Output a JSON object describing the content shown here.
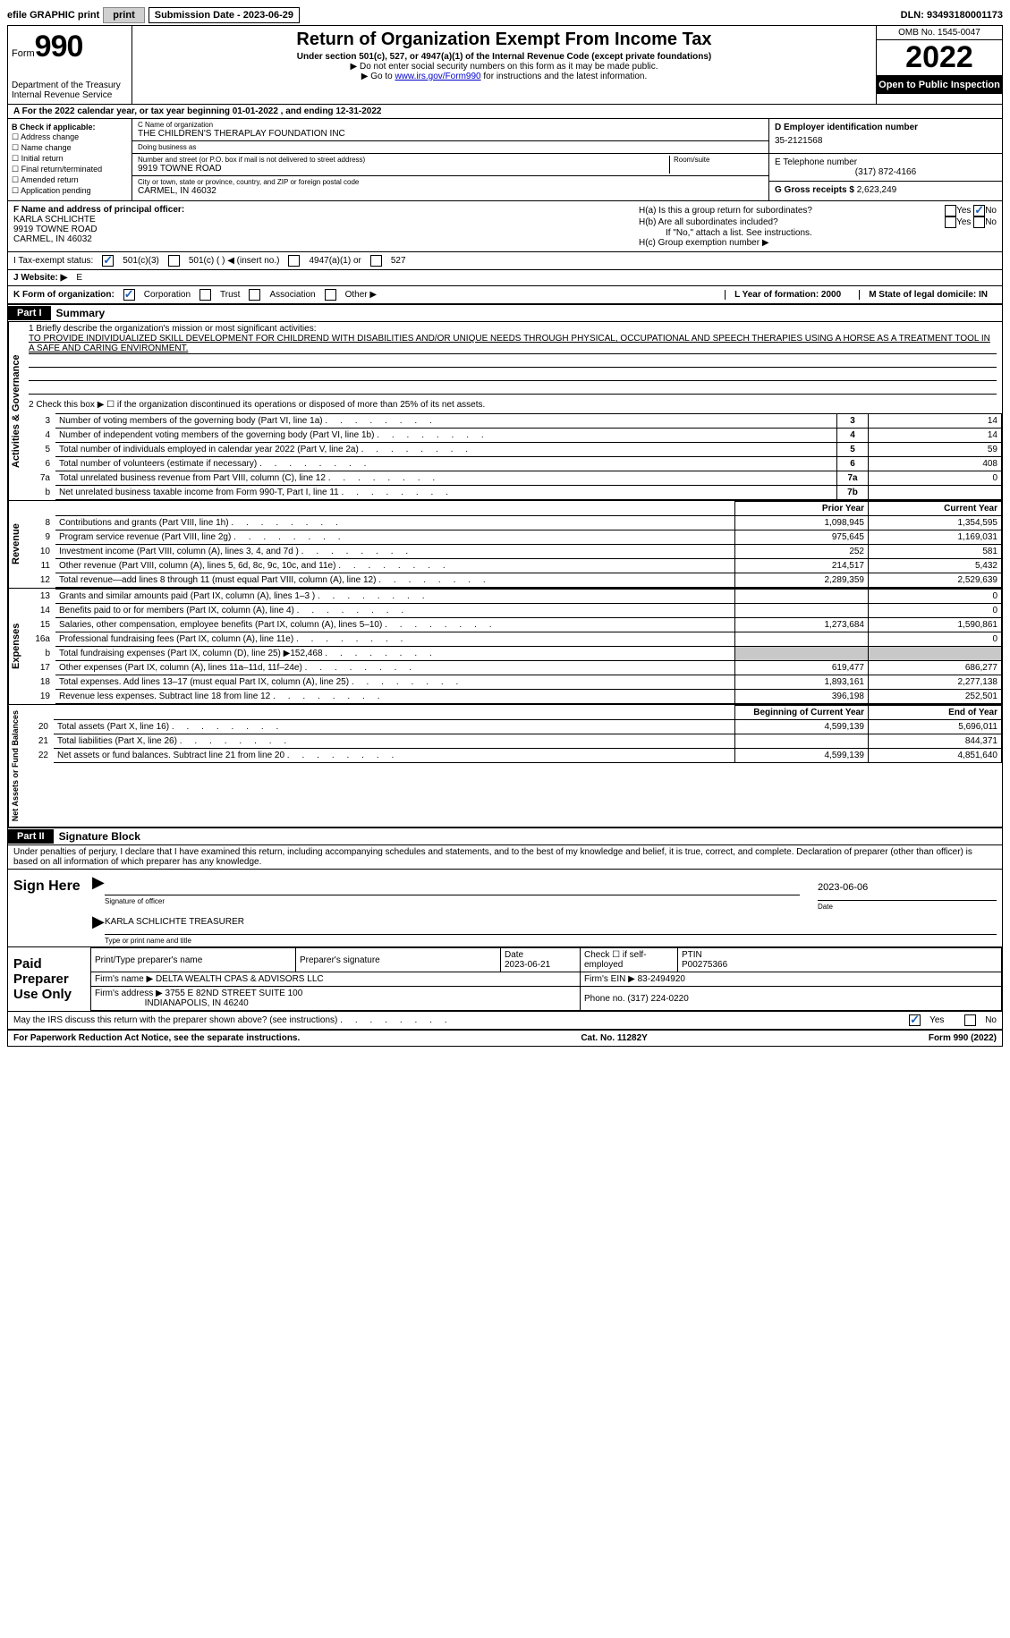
{
  "top": {
    "efile": "efile GRAPHIC print",
    "sub_date_label": "Submission Date - 2023-06-29",
    "dln": "DLN: 93493180001173"
  },
  "header": {
    "form_word": "Form",
    "form_no": "990",
    "title": "Return of Organization Exempt From Income Tax",
    "subtitle": "Under section 501(c), 527, or 4947(a)(1) of the Internal Revenue Code (except private foundations)",
    "line2": "▶ Do not enter social security numbers on this form as it may be made public.",
    "line3_pre": "▶ Go to ",
    "line3_link": "www.irs.gov/Form990",
    "line3_post": " for instructions and the latest information.",
    "dept": "Department of the Treasury Internal Revenue Service",
    "omb": "OMB No. 1545-0047",
    "year": "2022",
    "oti": "Open to Public Inspection"
  },
  "rowA": "A For the 2022 calendar year, or tax year beginning 01-01-2022    , and ending 12-31-2022",
  "colB": {
    "label": "B Check if applicable:",
    "opts": [
      "Address change",
      "Name change",
      "Initial return",
      "Final return/terminated",
      "Amended return",
      "Application pending"
    ]
  },
  "colC": {
    "name_label": "C Name of organization",
    "name": "THE CHILDREN'S THERAPLAY FOUNDATION INC",
    "dba_label": "Doing business as",
    "addr_label": "Number and street (or P.O. box if mail is not delivered to street address)",
    "room_label": "Room/suite",
    "addr": "9919 TOWNE ROAD",
    "city_label": "City or town, state or province, country, and ZIP or foreign postal code",
    "city": "CARMEL, IN  46032"
  },
  "colD": {
    "ein_label": "D Employer identification number",
    "ein": "35-2121568",
    "phone_label": "E Telephone number",
    "phone": "(317) 872-4166",
    "gross_label": "G Gross receipts $",
    "gross": "2,623,249"
  },
  "rowF": {
    "label": "F  Name and address of principal officer:",
    "name": "KARLA SCHLICHTE",
    "addr1": "9919 TOWNE ROAD",
    "addr2": "CARMEL, IN  46032"
  },
  "rowH": {
    "ha": "H(a)  Is this a group return for subordinates?",
    "hb": "H(b)  Are all subordinates included?",
    "hb_note": "If \"No,\" attach a list. See instructions.",
    "hc": "H(c)  Group exemption number ▶",
    "yes": "Yes",
    "no": "No"
  },
  "rowI": {
    "label": "I   Tax-exempt status:",
    "o1": "501(c)(3)",
    "o2": "501(c) (  ) ◀ (insert no.)",
    "o3": "4947(a)(1) or",
    "o4": "527"
  },
  "rowJ": {
    "label": "J   Website: ▶",
    "val": "E"
  },
  "rowK": {
    "label": "K Form of organization:",
    "o1": "Corporation",
    "o2": "Trust",
    "o3": "Association",
    "o4": "Other ▶",
    "L": "L Year of formation: 2000",
    "M": "M State of legal domicile: IN"
  },
  "part1": {
    "num": "Part I",
    "title": "Summary"
  },
  "mission": {
    "label": "1   Briefly describe the organization's mission or most significant activities:",
    "text": "TO PROVIDE INDIVIDUALIZED SKILL DEVELOPMENT FOR CHILDREND WITH DISABILITIES AND/OR UNIQUE NEEDS THROUGH PHYSICAL, OCCUPATIONAL AND SPEECH THERAPIES USING A HORSE AS A TREATMENT TOOL IN A SAFE AND CARING ENVIRONMENT."
  },
  "line2": "2   Check this box ▶ ☐  if the organization discontinued its operations or disposed of more than 25% of its net assets.",
  "gov_rows": [
    {
      "n": "3",
      "desc": "Number of voting members of the governing body (Part VI, line 1a)",
      "box": "3",
      "val": "14"
    },
    {
      "n": "4",
      "desc": "Number of independent voting members of the governing body (Part VI, line 1b)",
      "box": "4",
      "val": "14"
    },
    {
      "n": "5",
      "desc": "Total number of individuals employed in calendar year 2022 (Part V, line 2a)",
      "box": "5",
      "val": "59"
    },
    {
      "n": "6",
      "desc": "Total number of volunteers (estimate if necessary)",
      "box": "6",
      "val": "408"
    },
    {
      "n": "7a",
      "desc": "Total unrelated business revenue from Part VIII, column (C), line 12",
      "box": "7a",
      "val": "0"
    },
    {
      "n": "b",
      "desc": "Net unrelated business taxable income from Form 990-T, Part I, line 11",
      "box": "7b",
      "val": ""
    }
  ],
  "rev_hdr": {
    "prior": "Prior Year",
    "curr": "Current Year"
  },
  "rev_rows": [
    {
      "n": "8",
      "desc": "Contributions and grants (Part VIII, line 1h)",
      "p": "1,098,945",
      "c": "1,354,595"
    },
    {
      "n": "9",
      "desc": "Program service revenue (Part VIII, line 2g)",
      "p": "975,645",
      "c": "1,169,031"
    },
    {
      "n": "10",
      "desc": "Investment income (Part VIII, column (A), lines 3, 4, and 7d )",
      "p": "252",
      "c": "581"
    },
    {
      "n": "11",
      "desc": "Other revenue (Part VIII, column (A), lines 5, 6d, 8c, 9c, 10c, and 11e)",
      "p": "214,517",
      "c": "5,432"
    },
    {
      "n": "12",
      "desc": "Total revenue—add lines 8 through 11 (must equal Part VIII, column (A), line 12)",
      "p": "2,289,359",
      "c": "2,529,639"
    }
  ],
  "exp_rows": [
    {
      "n": "13",
      "desc": "Grants and similar amounts paid (Part IX, column (A), lines 1–3 )",
      "p": "",
      "c": "0"
    },
    {
      "n": "14",
      "desc": "Benefits paid to or for members (Part IX, column (A), line 4)",
      "p": "",
      "c": "0"
    },
    {
      "n": "15",
      "desc": "Salaries, other compensation, employee benefits (Part IX, column (A), lines 5–10)",
      "p": "1,273,684",
      "c": "1,590,861"
    },
    {
      "n": "16a",
      "desc": "Professional fundraising fees (Part IX, column (A), line 11e)",
      "p": "",
      "c": "0"
    },
    {
      "n": "b",
      "desc": "Total fundraising expenses (Part IX, column (D), line 25) ▶152,468",
      "p": "grey",
      "c": "grey"
    },
    {
      "n": "17",
      "desc": "Other expenses (Part IX, column (A), lines 11a–11d, 11f–24e)",
      "p": "619,477",
      "c": "686,277"
    },
    {
      "n": "18",
      "desc": "Total expenses. Add lines 13–17 (must equal Part IX, column (A), line 25)",
      "p": "1,893,161",
      "c": "2,277,138"
    },
    {
      "n": "19",
      "desc": "Revenue less expenses. Subtract line 18 from line 12",
      "p": "396,198",
      "c": "252,501"
    }
  ],
  "na_hdr": {
    "prior": "Beginning of Current Year",
    "curr": "End of Year"
  },
  "na_rows": [
    {
      "n": "20",
      "desc": "Total assets (Part X, line 16)",
      "p": "4,599,139",
      "c": "5,696,011"
    },
    {
      "n": "21",
      "desc": "Total liabilities (Part X, line 26)",
      "p": "",
      "c": "844,371"
    },
    {
      "n": "22",
      "desc": "Net assets or fund balances. Subtract line 21 from line 20",
      "p": "4,599,139",
      "c": "4,851,640"
    }
  ],
  "part2": {
    "num": "Part II",
    "title": "Signature Block"
  },
  "sig_decl": "Under penalties of perjury, I declare that I have examined this return, including accompanying schedules and statements, and to the best of my knowledge and belief, it is true, correct, and complete. Declaration of preparer (other than officer) is based on all information of which preparer has any knowledge.",
  "sign": {
    "label": "Sign Here",
    "sig_cap": "Signature of officer",
    "date": "2023-06-06",
    "date_cap": "Date",
    "name": "KARLA SCHLICHTE  TREASURER",
    "name_cap": "Type or print name and title"
  },
  "paid": {
    "label": "Paid Preparer Use Only",
    "h1": "Print/Type preparer's name",
    "h2": "Preparer's signature",
    "h3": "Date",
    "h3v": "2023-06-21",
    "h4": "Check ☐ if self-employed",
    "h5": "PTIN",
    "h5v": "P00275366",
    "firm_label": "Firm's name   ▶",
    "firm": "DELTA WEALTH CPAS & ADVISORS LLC",
    "ein_label": "Firm's EIN ▶",
    "ein": "83-2494920",
    "addr_label": "Firm's address ▶",
    "addr1": "3755 E 82ND STREET SUITE 100",
    "addr2": "INDIANAPOLIS, IN  46240",
    "ph_label": "Phone no.",
    "ph": "(317) 224-0220"
  },
  "discuss": "May the IRS discuss this return with the preparer shown above? (see instructions)",
  "footer": {
    "left": "For Paperwork Reduction Act Notice, see the separate instructions.",
    "mid": "Cat. No. 11282Y",
    "right": "Form 990 (2022)"
  },
  "labels": {
    "vert_gov": "Activities & Governance",
    "vert_rev": "Revenue",
    "vert_exp": "Expenses",
    "vert_na": "Net Assets or Fund Balances"
  }
}
